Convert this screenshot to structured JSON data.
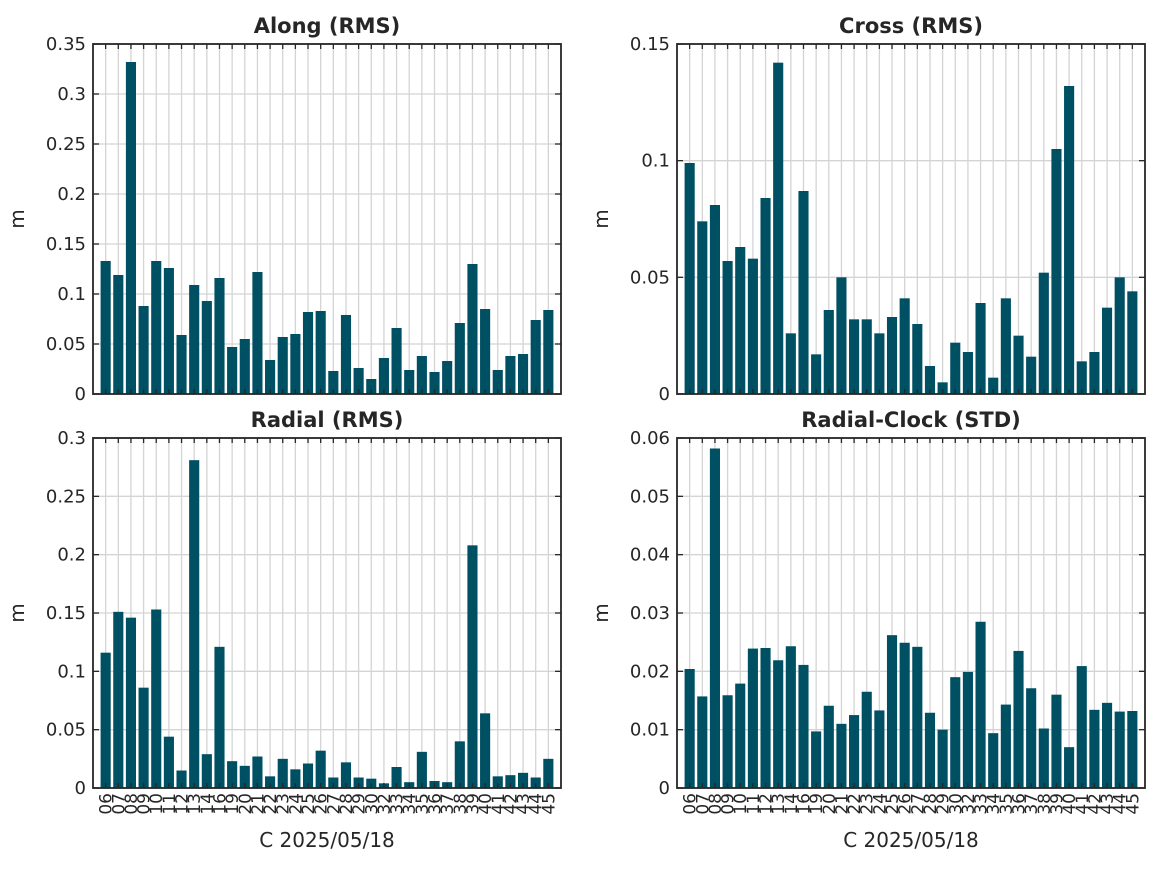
{
  "bar_color": "#005064",
  "axis_color": "#262626",
  "grid_color": "#d4d4d4",
  "chart_data": [
    {
      "type": "bar",
      "title": "Along (RMS)",
      "ylabel": "m",
      "xlabel": "",
      "ylim": [
        0,
        0.35
      ],
      "yticks": [
        0,
        0.05,
        0.1,
        0.15,
        0.2,
        0.25,
        0.3,
        0.35
      ],
      "ytick_labels": [
        "0",
        "0.05",
        "0.1",
        "0.15",
        "0.2",
        "0.25",
        "0.3",
        "0.35"
      ],
      "grid": true,
      "categories": [
        "06",
        "07",
        "08",
        "09",
        "10",
        "11",
        "12",
        "13",
        "14",
        "16",
        "19",
        "20",
        "21",
        "22",
        "23",
        "24",
        "25",
        "26",
        "27",
        "28",
        "29",
        "30",
        "32",
        "33",
        "34",
        "35",
        "36",
        "37",
        "38",
        "39",
        "40",
        "41",
        "42",
        "43",
        "44",
        "45"
      ],
      "values": [
        0.133,
        0.119,
        0.332,
        0.088,
        0.133,
        0.126,
        0.059,
        0.109,
        0.093,
        0.116,
        0.047,
        0.055,
        0.122,
        0.034,
        0.057,
        0.06,
        0.082,
        0.083,
        0.023,
        0.079,
        0.026,
        0.015,
        0.036,
        0.066,
        0.024,
        0.038,
        0.022,
        0.033,
        0.071,
        0.13,
        0.085,
        0.024,
        0.038,
        0.04,
        0.074,
        0.084
      ]
    },
    {
      "type": "bar",
      "title": "Cross (RMS)",
      "ylabel": "m",
      "xlabel": "",
      "ylim": [
        0,
        0.15
      ],
      "yticks": [
        0,
        0.05,
        0.1,
        0.15
      ],
      "ytick_labels": [
        "0",
        "0.05",
        "0.1",
        "0.15"
      ],
      "grid": true,
      "categories": [
        "06",
        "07",
        "08",
        "09",
        "10",
        "11",
        "12",
        "13",
        "14",
        "16",
        "19",
        "20",
        "21",
        "22",
        "23",
        "24",
        "25",
        "26",
        "27",
        "28",
        "29",
        "30",
        "32",
        "33",
        "34",
        "35",
        "36",
        "37",
        "38",
        "39",
        "40",
        "41",
        "42",
        "43",
        "44",
        "45"
      ],
      "values": [
        0.099,
        0.074,
        0.081,
        0.057,
        0.063,
        0.058,
        0.084,
        0.142,
        0.026,
        0.087,
        0.017,
        0.036,
        0.05,
        0.032,
        0.032,
        0.026,
        0.033,
        0.041,
        0.03,
        0.012,
        0.005,
        0.022,
        0.018,
        0.039,
        0.007,
        0.041,
        0.025,
        0.016,
        0.052,
        0.105,
        0.132,
        0.014,
        0.018,
        0.037,
        0.05,
        0.044
      ]
    },
    {
      "type": "bar",
      "title": "Radial (RMS)",
      "ylabel": "m",
      "xlabel": "C 2025/05/18",
      "ylim": [
        0,
        0.3
      ],
      "yticks": [
        0,
        0.05,
        0.1,
        0.15,
        0.2,
        0.25,
        0.3
      ],
      "ytick_labels": [
        "0",
        "0.05",
        "0.1",
        "0.15",
        "0.2",
        "0.25",
        "0.3"
      ],
      "grid": true,
      "categories": [
        "06",
        "07",
        "08",
        "09",
        "10",
        "11",
        "12",
        "13",
        "14",
        "16",
        "19",
        "20",
        "21",
        "22",
        "23",
        "24",
        "25",
        "26",
        "27",
        "28",
        "29",
        "30",
        "32",
        "33",
        "34",
        "35",
        "36",
        "37",
        "38",
        "39",
        "40",
        "41",
        "42",
        "43",
        "44",
        "45"
      ],
      "values": [
        0.116,
        0.151,
        0.146,
        0.086,
        0.153,
        0.044,
        0.015,
        0.281,
        0.029,
        0.121,
        0.023,
        0.019,
        0.027,
        0.01,
        0.025,
        0.016,
        0.021,
        0.032,
        0.009,
        0.022,
        0.009,
        0.008,
        0.004,
        0.018,
        0.005,
        0.031,
        0.006,
        0.005,
        0.04,
        0.208,
        0.064,
        0.01,
        0.011,
        0.013,
        0.009,
        0.025
      ]
    },
    {
      "type": "bar",
      "title": "Radial-Clock (STD)",
      "ylabel": "m",
      "xlabel": "C 2025/05/18",
      "ylim": [
        0,
        0.06
      ],
      "yticks": [
        0,
        0.01,
        0.02,
        0.03,
        0.04,
        0.05,
        0.06
      ],
      "ytick_labels": [
        "0",
        "0.01",
        "0.02",
        "0.03",
        "0.04",
        "0.05",
        "0.06"
      ],
      "grid": true,
      "categories": [
        "06",
        "07",
        "08",
        "09",
        "10",
        "11",
        "12",
        "13",
        "14",
        "16",
        "19",
        "20",
        "21",
        "22",
        "23",
        "24",
        "25",
        "26",
        "27",
        "28",
        "29",
        "30",
        "32",
        "33",
        "34",
        "35",
        "36",
        "37",
        "38",
        "39",
        "40",
        "41",
        "42",
        "43",
        "44",
        "45"
      ],
      "values": [
        0.0204,
        0.0157,
        0.0582,
        0.0159,
        0.0179,
        0.0239,
        0.024,
        0.0219,
        0.0243,
        0.0211,
        0.0097,
        0.0141,
        0.011,
        0.0125,
        0.0165,
        0.0133,
        0.0262,
        0.0249,
        0.0242,
        0.0129,
        0.01,
        0.019,
        0.0199,
        0.0285,
        0.0094,
        0.0143,
        0.0235,
        0.0171,
        0.0102,
        0.016,
        0.007,
        0.0209,
        0.0134,
        0.0146,
        0.0131,
        0.0132
      ]
    }
  ]
}
